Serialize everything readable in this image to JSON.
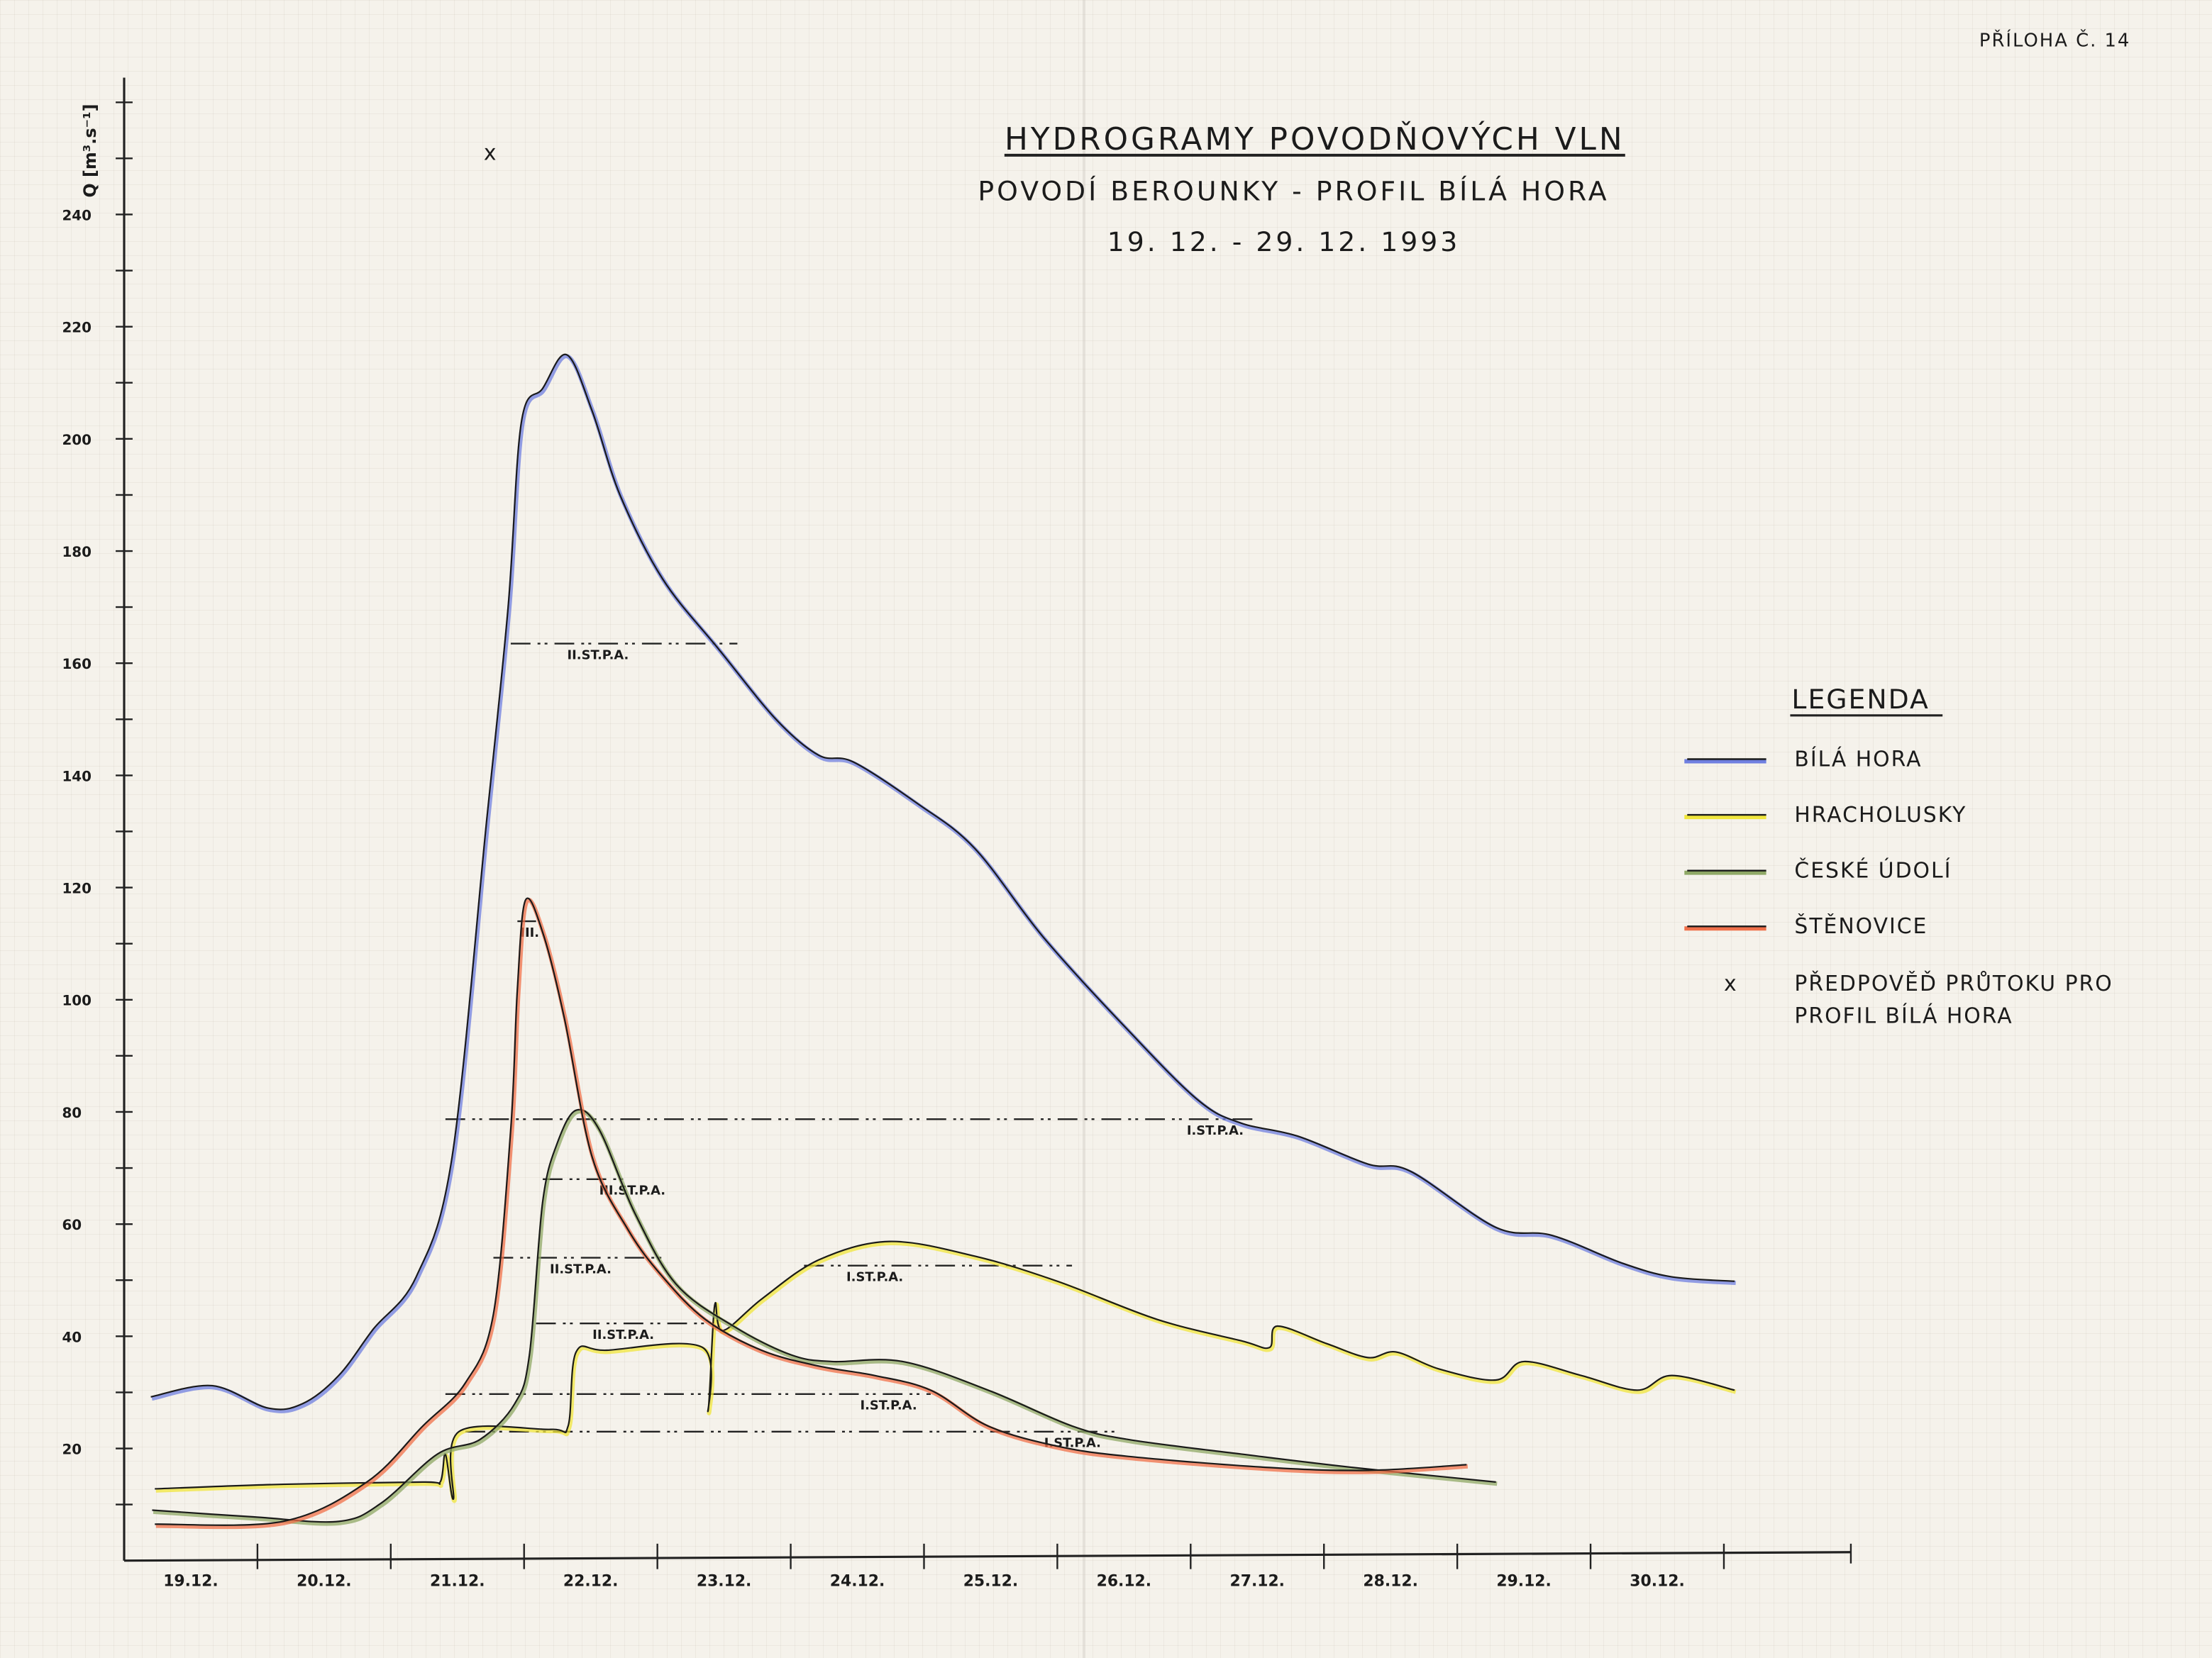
{
  "annex_label": "PŘÍLOHA Č. 14",
  "chart_data": {
    "type": "line",
    "title": "HYDROGRAMY POVODŇOVÝCH VLN",
    "subtitle": "POVODÍ BEROUNKY - PROFIL BÍLÁ HORA",
    "date_range": "19. 12. - 29. 12. 1993",
    "ylabel": "Q [m³.s⁻¹]",
    "xlabel": "",
    "ylim": [
      0,
      260
    ],
    "xlim_days_from_19_12": [
      0,
      12.96
    ],
    "yticks": [
      20,
      40,
      60,
      80,
      100,
      120,
      140,
      160,
      180,
      200,
      220,
      240
    ],
    "xtick_labels": [
      "19.12.",
      "20.12.",
      "21.12.",
      "22.12.",
      "23.12.",
      "24.12.",
      "25.12.",
      "26.12.",
      "27.12.",
      "28.12.",
      "29.12.",
      "30.12."
    ],
    "grid": true,
    "legend": {
      "title": "LEGENDA",
      "placement": "right",
      "forecast_label_line1": "PŘEDPOVĚĎ PRŮTOKU PRO",
      "forecast_label_line2": "PROFIL BÍLÁ HORA",
      "forecast_marker": "x"
    },
    "series": [
      {
        "name": "BÍLÁ HORA",
        "color": "#6f7fe0",
        "x": [
          0.2,
          0.66,
          1.08,
          1.34,
          1.61,
          1.87,
          2.19,
          2.46,
          2.72,
          2.88,
          2.98,
          3.14,
          3.32,
          3.51,
          3.72,
          4.04,
          4.46,
          4.89,
          5.21,
          5.47,
          5.95,
          6.38,
          6.9,
          7.53,
          8.06,
          8.38,
          8.8,
          9.33,
          9.65,
          10.29,
          10.71,
          11.24,
          11.61,
          12.08
        ],
        "y": [
          29.2,
          31.2,
          27.2,
          28,
          33,
          41.3,
          50.6,
          72,
          132,
          170,
          203,
          209,
          215,
          205,
          190,
          175,
          162.5,
          150,
          143.6,
          142.4,
          135,
          127,
          111,
          94.6,
          82,
          78,
          75.7,
          70.7,
          69.4,
          59.4,
          58,
          53,
          50.6,
          49.8
        ]
      },
      {
        "name": "HRACHOLUSKY",
        "color": "#f0e63c",
        "x": [
          0.23,
          1.19,
          2.24,
          2.37,
          2.41,
          2.47,
          2.51,
          3.2,
          3.33,
          3.39,
          3.62,
          4.34,
          4.38,
          4.43,
          4.49,
          4.79,
          5.21,
          5.74,
          6.38,
          7.0,
          7.75,
          8.38,
          8.59,
          8.65,
          9.02,
          9.33,
          9.54,
          9.86,
          10.29,
          10.5,
          10.93,
          11.35,
          11.61,
          12.08
        ],
        "y": [
          12.8,
          13.6,
          14,
          14,
          19,
          11,
          23,
          23.4,
          24,
          37.2,
          37.5,
          38,
          26.7,
          45.5,
          41,
          46.8,
          53.6,
          56.9,
          54.3,
          49.8,
          43,
          39.2,
          38,
          41.8,
          38.7,
          36.2,
          37.2,
          34.2,
          32.2,
          35.5,
          33,
          30.4,
          33,
          30.4
        ]
      },
      {
        "name": "ČESKÉ ÚDOLÍ",
        "color": "#8fa866",
        "x": [
          0.21,
          0.97,
          1.61,
          1.93,
          2.35,
          2.67,
          2.93,
          3.04,
          3.14,
          3.25,
          3.39,
          3.56,
          3.83,
          4.14,
          4.57,
          5.0,
          5.31,
          5.84,
          6.48,
          7.11,
          7.53,
          8.38,
          9.22,
          10.29
        ],
        "y": [
          9,
          7.8,
          7,
          10.3,
          19,
          21.6,
          28,
          36.7,
          64,
          74.5,
          80.3,
          77,
          62,
          49.3,
          41.8,
          36.7,
          35.5,
          35.5,
          30.4,
          24,
          21.6,
          19,
          16.6,
          14
        ]
      },
      {
        "name": "ŠTĚNOVICE",
        "color": "#f0704a",
        "x": [
          0.23,
          1.19,
          1.82,
          2.24,
          2.56,
          2.77,
          2.9,
          2.95,
          3.01,
          3.14,
          3.3,
          3.51,
          3.78,
          4.04,
          4.36,
          4.78,
          5.21,
          5.63,
          6.05,
          6.48,
          7.0,
          7.53,
          8.59,
          9.33,
          10.07
        ],
        "y": [
          6.5,
          7,
          14,
          24,
          31.7,
          44,
          77,
          102,
          117.7,
          112,
          97,
          72,
          59,
          50.6,
          43,
          37.5,
          34.7,
          33,
          30.4,
          24,
          20.4,
          18.6,
          16.6,
          16.1,
          17.1
        ]
      }
    ],
    "forecast_points": [
      {
        "x": 2.75,
        "y": 251,
        "label": "x"
      }
    ],
    "thresholds": [
      {
        "label": "II.ST.P.A.",
        "y": 163.5,
        "x_from": 2.9,
        "x_to": 4.6
      },
      {
        "label": "I.ST.P.A.",
        "y": 78.7,
        "x_from": 2.41,
        "x_to": 8.5
      },
      {
        "label": "III.",
        "y": 114,
        "x_from": 2.95,
        "x_to": 3.09
      },
      {
        "label": "III.ST.P.A.",
        "y": 68,
        "x_from": 3.14,
        "x_to": 3.78
      },
      {
        "label": "II.ST.P.A.",
        "y": 54,
        "x_from": 2.77,
        "x_to": 4.04
      },
      {
        "label": "II.ST.P.A.",
        "y": 42.3,
        "x_from": 3.09,
        "x_to": 4.36
      },
      {
        "label": "I.ST.P.A.",
        "y": 52.6,
        "x_from": 5.1,
        "x_to": 7.11
      },
      {
        "label": "I.ST.P.A.",
        "y": 29.7,
        "x_from": 2.41,
        "x_to": 6.05
      },
      {
        "label": "I.ST.P.A.",
        "y": 23,
        "x_from": 2.56,
        "x_to": 7.43
      }
    ]
  }
}
